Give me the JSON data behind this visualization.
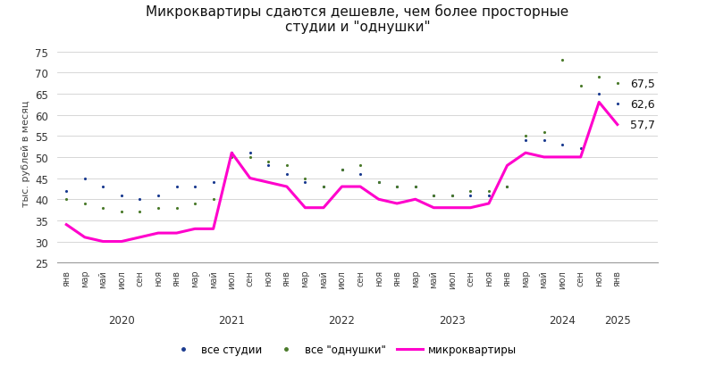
{
  "title": "Микроквартиры сдаются дешевле, чем более просторные\nстудии и \"однушки\"",
  "ylabel": "тыс. рублей в месяц",
  "ylim": [
    25,
    77
  ],
  "yticks": [
    25,
    30,
    35,
    40,
    45,
    50,
    55,
    60,
    65,
    70,
    75
  ],
  "background_color": "#ffffff",
  "months_labels": [
    "янв",
    "мар",
    "май",
    "июл",
    "сен",
    "ноя",
    "янв",
    "мар",
    "май",
    "июл",
    "сен",
    "ноя",
    "янв",
    "мар",
    "май",
    "июл",
    "сен",
    "ноя",
    "янв",
    "мар",
    "май",
    "июл",
    "сен",
    "ноя",
    "янв",
    "мар",
    "май",
    "июл",
    "сен",
    "ноя",
    "янв"
  ],
  "year_labels": [
    "2020",
    "2021",
    "2022",
    "2023",
    "2024",
    "2025"
  ],
  "year_tick_positions": [
    3,
    9,
    15,
    21,
    27,
    30
  ],
  "studios": [
    42,
    45,
    43,
    41,
    40,
    41,
    43,
    43,
    44,
    51,
    51,
    48,
    46,
    44,
    43,
    47,
    46,
    44,
    43,
    43,
    41,
    41,
    41,
    41,
    43,
    54,
    54,
    53,
    52,
    65,
    62.6
  ],
  "odnushki": [
    40,
    39,
    38,
    37,
    37,
    38,
    38,
    39,
    40,
    50,
    50,
    49,
    48,
    45,
    43,
    47,
    48,
    44,
    43,
    43,
    41,
    41,
    42,
    42,
    43,
    55,
    56,
    73,
    67,
    69,
    67.5
  ],
  "micro": [
    34,
    31,
    30,
    30,
    31,
    32,
    32,
    33,
    33,
    51,
    45,
    44,
    43,
    38,
    38,
    43,
    43,
    40,
    39,
    40,
    38,
    38,
    38,
    39,
    48,
    51,
    50,
    50,
    50,
    63,
    57.7
  ],
  "end_labels_text": {
    "studios": "62,6",
    "odnushki": "67,5",
    "micro": "57,7"
  },
  "end_labels_val": {
    "studios": 62.6,
    "odnushki": 67.5,
    "micro": 57.7
  },
  "color_studios": "#1a3a8f",
  "color_odnushki": "#4a7a2a",
  "color_micro": "#ff00cc",
  "legend_labels": [
    "все студии",
    "все \"однушки\"",
    "микроквартиры"
  ]
}
